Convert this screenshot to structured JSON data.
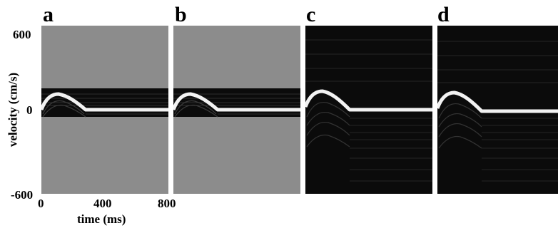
{
  "figure": {
    "panels": [
      {
        "letter": "a",
        "view": "band-limited",
        "background": "#8c8c8c"
      },
      {
        "letter": "b",
        "view": "band-limited",
        "background": "#8c8c8c"
      },
      {
        "letter": "c",
        "view": "full",
        "background": "#0b0b0b"
      },
      {
        "letter": "d",
        "view": "full",
        "background": "#0b0b0b"
      }
    ],
    "y_axis": {
      "label": "velocity (cm/s)",
      "ticks": [
        "600",
        "0",
        "-600"
      ]
    },
    "x_axis": {
      "label": "time (ms)",
      "ticks": [
        "0",
        "400",
        "800"
      ]
    },
    "colors": {
      "trace": "#f2f2f2",
      "gray_fill": "#8c8c8c",
      "dark_fill": "#0b0b0b"
    }
  }
}
